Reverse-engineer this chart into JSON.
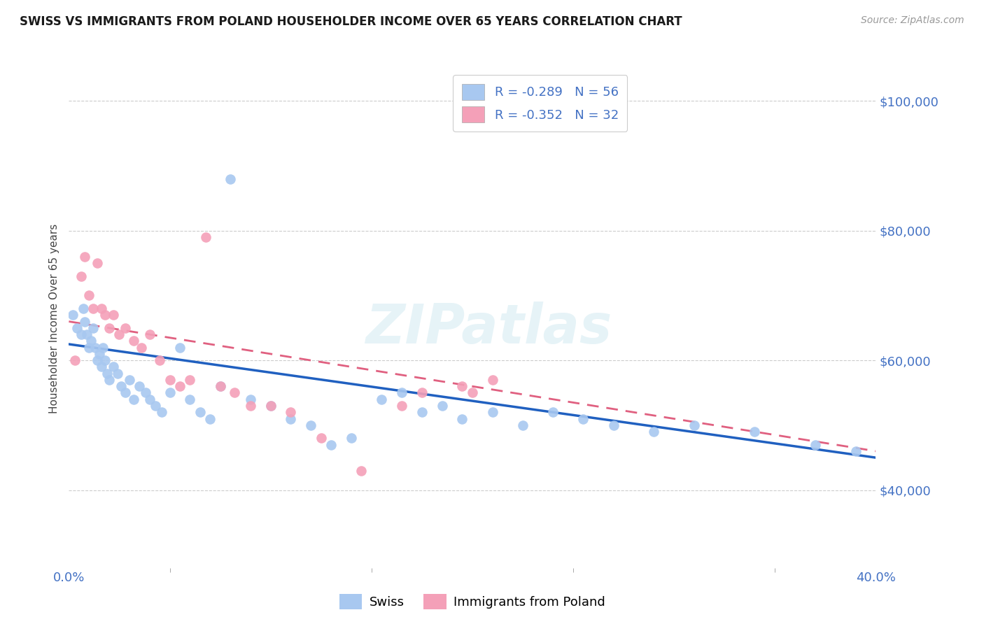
{
  "title": "SWISS VS IMMIGRANTS FROM POLAND HOUSEHOLDER INCOME OVER 65 YEARS CORRELATION CHART",
  "source": "Source: ZipAtlas.com",
  "ylabel": "Householder Income Over 65 years",
  "xmin": 0.0,
  "xmax": 0.4,
  "ymin": 28000,
  "ymax": 105000,
  "yticks": [
    40000,
    60000,
    80000,
    100000
  ],
  "ytick_labels": [
    "$40,000",
    "$60,000",
    "$80,000",
    "$100,000"
  ],
  "swiss_color": "#A8C8F0",
  "poland_color": "#F4A0B8",
  "swiss_line_color": "#2060C0",
  "poland_line_color": "#E06080",
  "swiss_R": -0.289,
  "swiss_N": 56,
  "poland_R": -0.352,
  "poland_N": 32,
  "swiss_x": [
    0.002,
    0.004,
    0.006,
    0.007,
    0.008,
    0.009,
    0.01,
    0.011,
    0.012,
    0.013,
    0.014,
    0.015,
    0.016,
    0.017,
    0.018,
    0.019,
    0.02,
    0.022,
    0.024,
    0.026,
    0.028,
    0.03,
    0.032,
    0.035,
    0.038,
    0.04,
    0.043,
    0.046,
    0.05,
    0.055,
    0.06,
    0.065,
    0.07,
    0.075,
    0.08,
    0.09,
    0.1,
    0.11,
    0.12,
    0.13,
    0.14,
    0.155,
    0.165,
    0.175,
    0.185,
    0.195,
    0.21,
    0.225,
    0.24,
    0.255,
    0.27,
    0.29,
    0.31,
    0.34,
    0.37,
    0.39
  ],
  "swiss_y": [
    67000,
    65000,
    64000,
    68000,
    66000,
    64000,
    62000,
    63000,
    65000,
    62000,
    60000,
    61000,
    59000,
    62000,
    60000,
    58000,
    57000,
    59000,
    58000,
    56000,
    55000,
    57000,
    54000,
    56000,
    55000,
    54000,
    53000,
    52000,
    55000,
    62000,
    54000,
    52000,
    51000,
    56000,
    88000,
    54000,
    53000,
    51000,
    50000,
    47000,
    48000,
    54000,
    55000,
    52000,
    53000,
    51000,
    52000,
    50000,
    52000,
    51000,
    50000,
    49000,
    50000,
    49000,
    47000,
    46000
  ],
  "poland_x": [
    0.003,
    0.006,
    0.008,
    0.01,
    0.012,
    0.014,
    0.016,
    0.018,
    0.02,
    0.022,
    0.025,
    0.028,
    0.032,
    0.036,
    0.04,
    0.045,
    0.05,
    0.055,
    0.06,
    0.068,
    0.075,
    0.082,
    0.09,
    0.1,
    0.11,
    0.125,
    0.145,
    0.165,
    0.175,
    0.195,
    0.2,
    0.21
  ],
  "poland_y": [
    60000,
    73000,
    76000,
    70000,
    68000,
    75000,
    68000,
    67000,
    65000,
    67000,
    64000,
    65000,
    63000,
    62000,
    64000,
    60000,
    57000,
    56000,
    57000,
    79000,
    56000,
    55000,
    53000,
    53000,
    52000,
    48000,
    43000,
    53000,
    55000,
    56000,
    55000,
    57000
  ],
  "background_color": "#FFFFFF",
  "grid_color": "#CCCCCC",
  "axis_color": "#4472C4",
  "watermark_text": "ZIPatlas",
  "legend_swiss_label": "Swiss",
  "legend_poland_label": "Immigrants from Poland",
  "swiss_trend_x0": 0.0,
  "swiss_trend_y0": 62500,
  "swiss_trend_x1": 0.4,
  "swiss_trend_y1": 45000,
  "poland_trend_x0": 0.0,
  "poland_trend_y0": 66000,
  "poland_trend_x1": 0.4,
  "poland_trend_y1": 46000
}
